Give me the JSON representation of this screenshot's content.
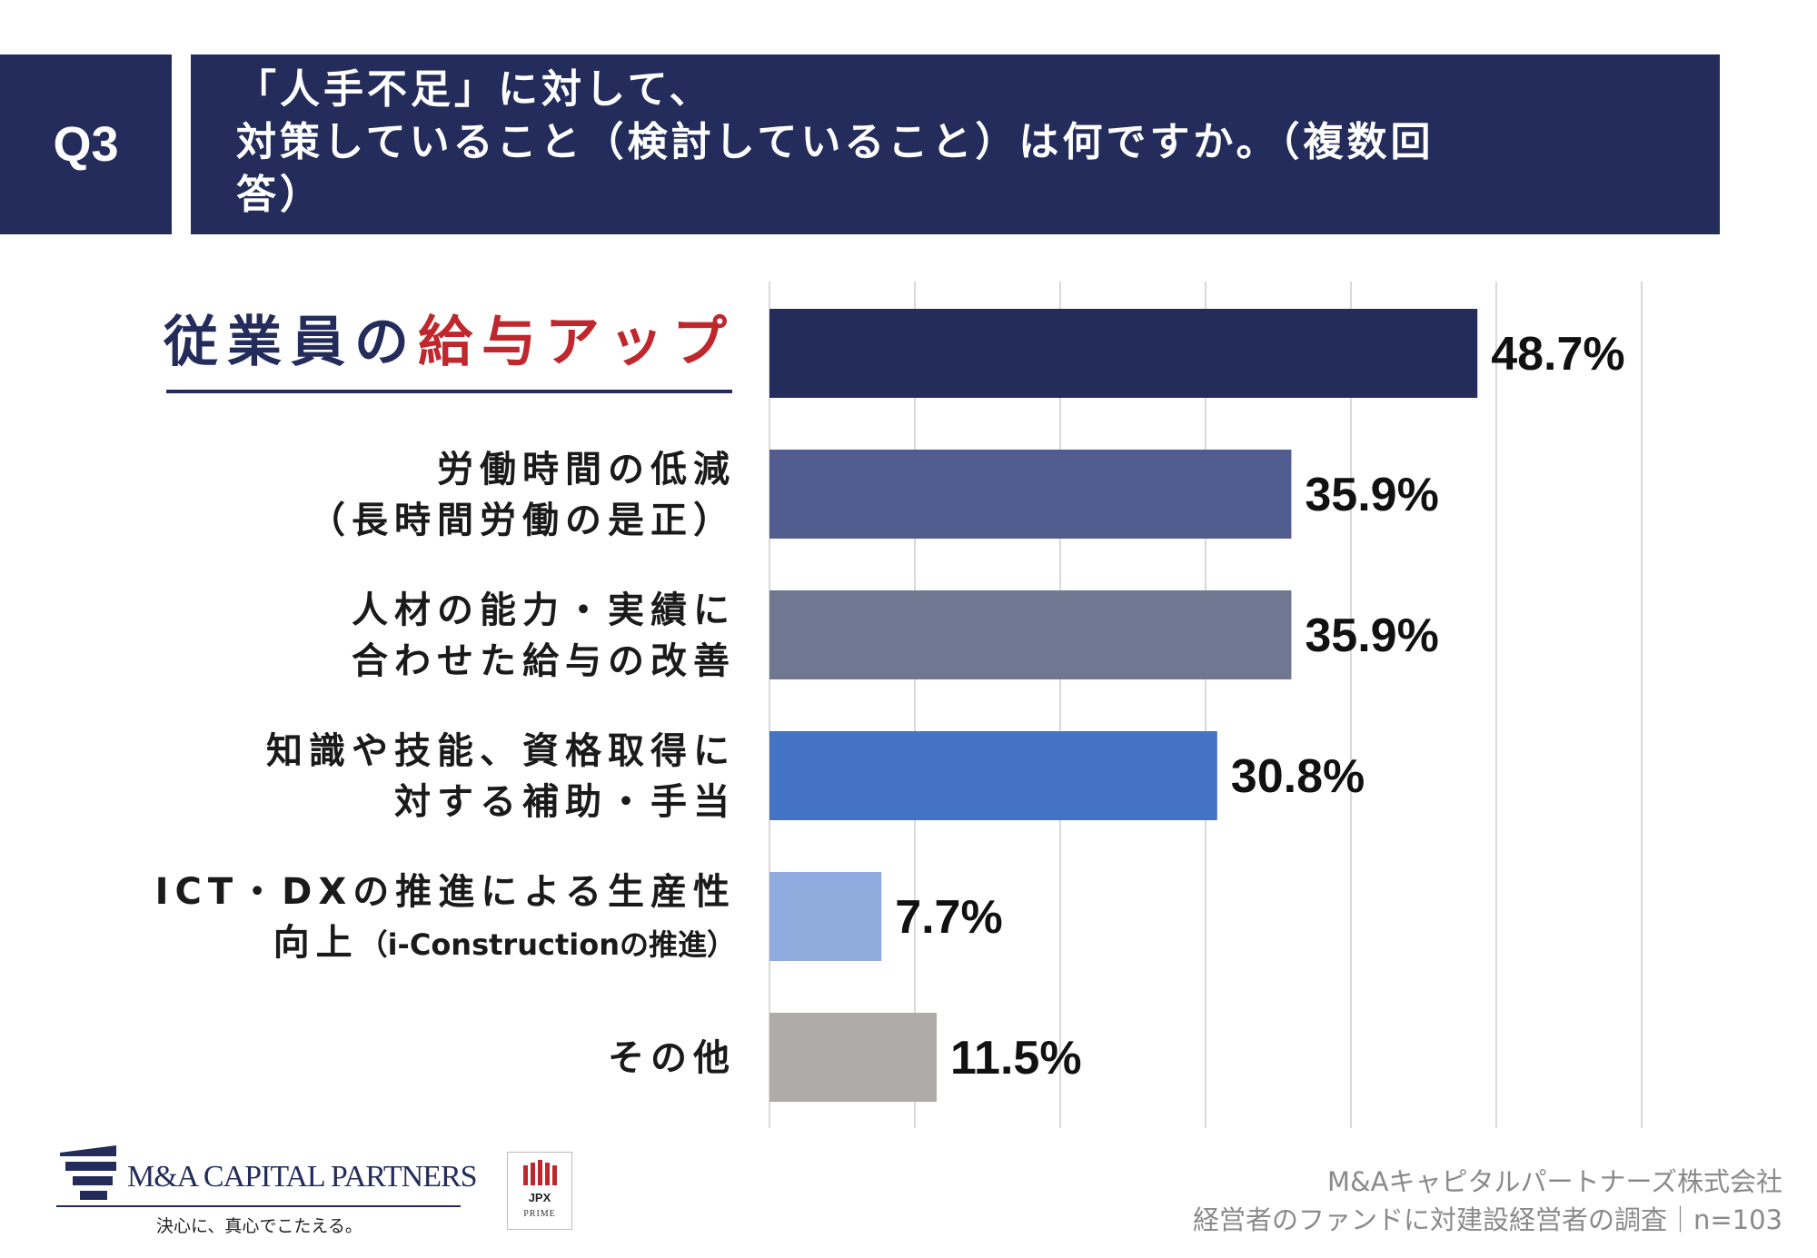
{
  "header": {
    "q_label": "Q3",
    "question_lines": [
      "「人手不足」に対して、",
      "対策していること（検討していること）は何ですか。（複数回",
      "答）"
    ]
  },
  "chart_data": {
    "type": "bar",
    "orientation": "horizontal",
    "categories": [
      {
        "lines": [
          [
            {
              "t": "従業員の",
              "c": "#232c5a"
            },
            {
              "t": "給与アップ",
              "c": "#c0272d"
            }
          ]
        ],
        "emphasis": true
      },
      {
        "lines": [
          [
            {
              "t": "労働時間の低減"
            }
          ],
          [
            {
              "t": "（長時間労働の是正）"
            }
          ]
        ]
      },
      {
        "lines": [
          [
            {
              "t": "人材の能力・実績に"
            }
          ],
          [
            {
              "t": "合わせた給与の改善"
            }
          ]
        ]
      },
      {
        "lines": [
          [
            {
              "t": "知識や技能、資格取得に"
            }
          ],
          [
            {
              "t": "対する補助・手当"
            }
          ]
        ]
      },
      {
        "lines": [
          [
            {
              "t": "ICT・DXの推進による生産性"
            }
          ],
          [
            {
              "t": "向上"
            },
            {
              "t": "（i-Constructionの推進）",
              "small": true
            }
          ]
        ]
      },
      {
        "lines": [
          [
            {
              "t": "その他"
            }
          ]
        ]
      }
    ],
    "values": [
      48.7,
      35.9,
      35.9,
      30.8,
      7.7,
      11.5
    ],
    "value_labels": [
      "48.7%",
      "35.9%",
      "35.9%",
      "30.8%",
      "7.7%",
      "11.5%"
    ],
    "colors": [
      "#232c5a",
      "#525d8f",
      "#707891",
      "#4472c4",
      "#8faadc",
      "#afabab"
    ],
    "xlim": [
      0,
      60
    ],
    "grid": true,
    "legend": "none"
  },
  "footer": {
    "logo_text": "M&A CAPITAL PARTNERS",
    "tagline": "決心に、真心でこたえる。",
    "jpx_text": "JPX",
    "jpx_sub": "PRIME",
    "company": "M&Aキャピタルパートナーズ株式会社",
    "survey": "経営者のファンドに対建設経営者の調査｜n=103"
  }
}
